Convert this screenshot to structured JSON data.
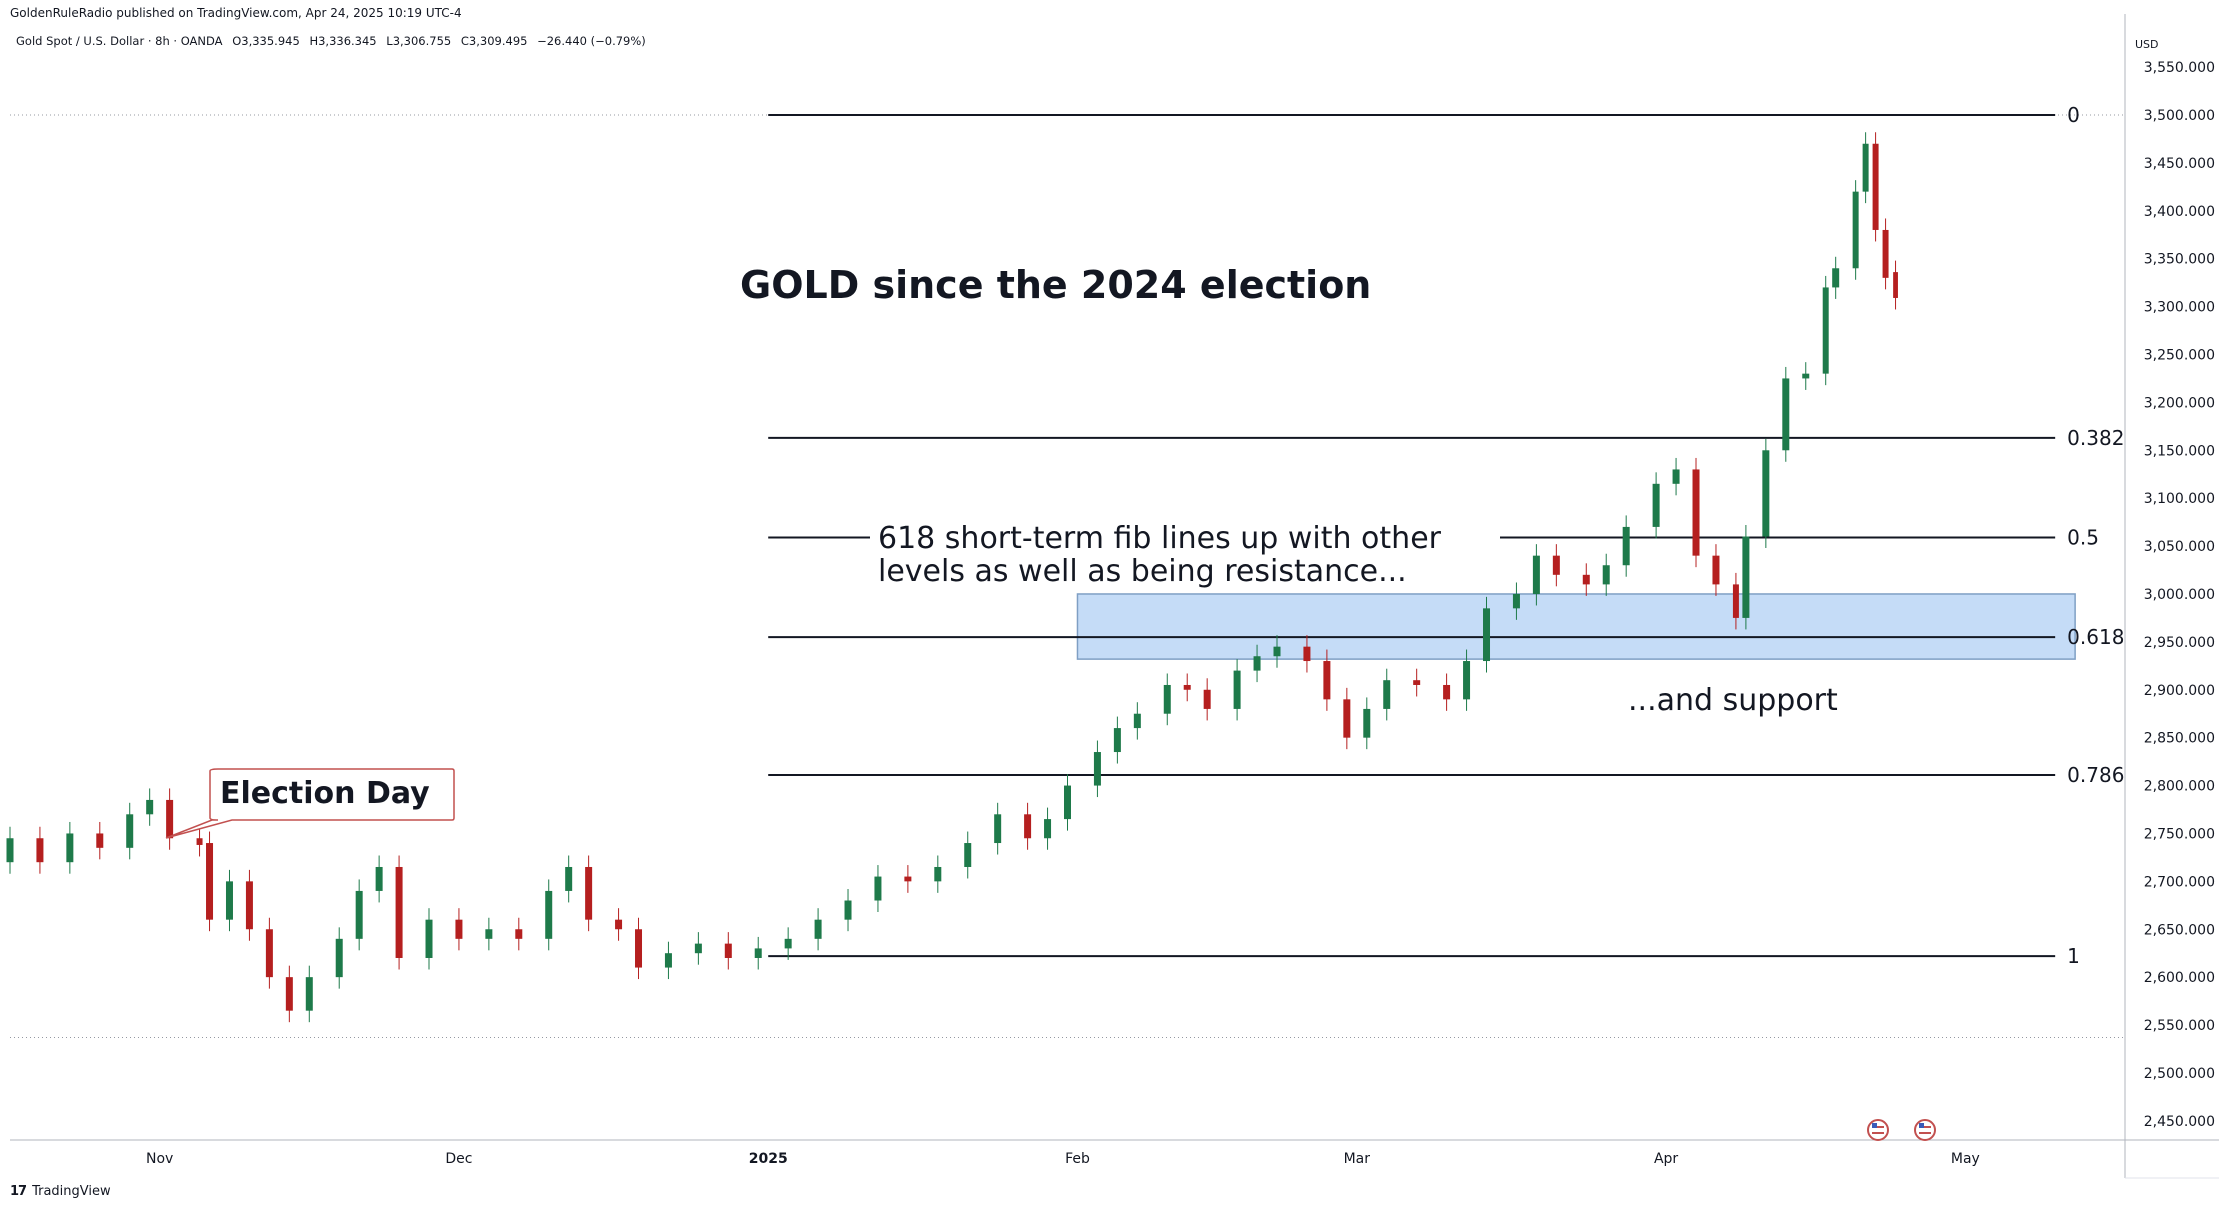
{
  "header": {
    "publisher": "GoldenRuleRadio published on TradingView.com, Apr 24, 2025 10:19 UTC-4",
    "symbol": "Gold Spot / U.S. Dollar · 8h · OANDA",
    "open": "O3,335.945",
    "high": "H3,336.345",
    "low": "L3,306.755",
    "close": "C3,309.495",
    "change": "−26.440 (−0.79%)"
  },
  "footer": {
    "logo_text": "TradingView"
  },
  "colors": {
    "up": "#1e7a4a",
    "down": "#b51f1f",
    "zone": "#c5dcf7",
    "zone_border": "#7f9fc4",
    "grid_text": "#131722"
  },
  "chart_data": {
    "type": "candlestick",
    "currency_label": "USD",
    "ylim": [
      2430,
      3595
    ],
    "y_ticks": [
      "2,450.000",
      "2,500.000",
      "2,550.000",
      "2,600.000",
      "2,650.000",
      "2,700.000",
      "2,750.000",
      "2,800.000",
      "2,850.000",
      "2,900.000",
      "2,950.000",
      "3,000.000",
      "3,050.000",
      "3,100.000",
      "3,150.000",
      "3,200.000",
      "3,250.000",
      "3,300.000",
      "3,350.000",
      "3,400.000",
      "3,450.000",
      "3,500.000",
      "3,550.000"
    ],
    "y_tick_values": [
      2450,
      2500,
      2550,
      2600,
      2650,
      2700,
      2750,
      2800,
      2850,
      2900,
      2950,
      3000,
      3050,
      3100,
      3150,
      3200,
      3250,
      3300,
      3350,
      3400,
      3450,
      3500,
      3550
    ],
    "x_labels": [
      {
        "label": "Nov",
        "date": "2024-11-01",
        "bold": false
      },
      {
        "label": "Dec",
        "date": "2024-12-01",
        "bold": false
      },
      {
        "label": "2025",
        "date": "2025-01-01",
        "bold": true
      },
      {
        "label": "Feb",
        "date": "2025-02-01",
        "bold": false
      },
      {
        "label": "Mar",
        "date": "2025-03-01",
        "bold": false
      },
      {
        "label": "Apr",
        "date": "2025-04-01",
        "bold": false
      },
      {
        "label": "May",
        "date": "2025-05-01",
        "bold": false
      }
    ],
    "x_range": [
      "2024-10-17",
      "2025-05-17"
    ],
    "title": "GOLD since the 2024 election",
    "series": [
      {
        "values": [
          [
            "2024-10-17",
            2720,
            2745
          ],
          [
            "2024-10-20",
            2745,
            2720
          ],
          [
            "2024-10-23",
            2720,
            2750
          ],
          [
            "2024-10-26",
            2750,
            2735
          ],
          [
            "2024-10-29",
            2735,
            2770
          ],
          [
            "2024-10-31",
            2770,
            2785
          ],
          [
            "2024-11-02",
            2785,
            2745
          ],
          [
            "2024-11-05",
            2745,
            2738
          ],
          [
            "2024-11-06",
            2740,
            2660
          ],
          [
            "2024-11-08",
            2660,
            2700
          ],
          [
            "2024-11-10",
            2700,
            2650
          ],
          [
            "2024-11-12",
            2650,
            2600
          ],
          [
            "2024-11-14",
            2600,
            2565
          ],
          [
            "2024-11-16",
            2565,
            2600
          ],
          [
            "2024-11-19",
            2600,
            2640
          ],
          [
            "2024-11-21",
            2640,
            2690
          ],
          [
            "2024-11-23",
            2690,
            2715
          ],
          [
            "2024-11-25",
            2715,
            2620
          ],
          [
            "2024-11-28",
            2620,
            2660
          ],
          [
            "2024-12-01",
            2660,
            2640
          ],
          [
            "2024-12-04",
            2640,
            2650
          ],
          [
            "2024-12-07",
            2650,
            2640
          ],
          [
            "2024-12-10",
            2640,
            2690
          ],
          [
            "2024-12-12",
            2690,
            2715
          ],
          [
            "2024-12-14",
            2715,
            2660
          ],
          [
            "2024-12-17",
            2660,
            2650
          ],
          [
            "2024-12-19",
            2650,
            2610
          ],
          [
            "2024-12-22",
            2610,
            2625
          ],
          [
            "2024-12-25",
            2625,
            2635
          ],
          [
            "2024-12-28",
            2635,
            2620
          ],
          [
            "2024-12-31",
            2620,
            2630
          ],
          [
            "2025-01-03",
            2630,
            2640
          ],
          [
            "2025-01-06",
            2640,
            2660
          ],
          [
            "2025-01-09",
            2660,
            2680
          ],
          [
            "2025-01-12",
            2680,
            2705
          ],
          [
            "2025-01-15",
            2705,
            2700
          ],
          [
            "2025-01-18",
            2700,
            2715
          ],
          [
            "2025-01-21",
            2715,
            2740
          ],
          [
            "2025-01-24",
            2740,
            2770
          ],
          [
            "2025-01-27",
            2770,
            2745
          ],
          [
            "2025-01-29",
            2745,
            2765
          ],
          [
            "2025-01-31",
            2765,
            2800
          ],
          [
            "2025-02-03",
            2800,
            2835
          ],
          [
            "2025-02-05",
            2835,
            2860
          ],
          [
            "2025-02-07",
            2860,
            2875
          ],
          [
            "2025-02-10",
            2875,
            2905
          ],
          [
            "2025-02-12",
            2905,
            2900
          ],
          [
            "2025-02-14",
            2900,
            2880
          ],
          [
            "2025-02-17",
            2880,
            2920
          ],
          [
            "2025-02-19",
            2920,
            2935
          ],
          [
            "2025-02-21",
            2935,
            2945
          ],
          [
            "2025-02-24",
            2945,
            2930
          ],
          [
            "2025-02-26",
            2930,
            2890
          ],
          [
            "2025-02-28",
            2890,
            2850
          ],
          [
            "2025-03-02",
            2850,
            2880
          ],
          [
            "2025-03-04",
            2880,
            2910
          ],
          [
            "2025-03-07",
            2910,
            2905
          ],
          [
            "2025-03-10",
            2905,
            2890
          ],
          [
            "2025-03-12",
            2890,
            2930
          ],
          [
            "2025-03-14",
            2930,
            2985
          ],
          [
            "2025-03-17",
            2985,
            3000
          ],
          [
            "2025-03-19",
            3000,
            3040
          ],
          [
            "2025-03-21",
            3040,
            3020
          ],
          [
            "2025-03-24",
            3020,
            3010
          ],
          [
            "2025-03-26",
            3010,
            3030
          ],
          [
            "2025-03-28",
            3030,
            3070
          ],
          [
            "2025-03-31",
            3070,
            3115
          ],
          [
            "2025-04-02",
            3115,
            3130
          ],
          [
            "2025-04-04",
            3130,
            3040
          ],
          [
            "2025-04-06",
            3040,
            3010
          ],
          [
            "2025-04-08",
            3010,
            2975
          ],
          [
            "2025-04-09",
            2975,
            3060
          ],
          [
            "2025-04-11",
            3060,
            3150
          ],
          [
            "2025-04-13",
            3150,
            3225
          ],
          [
            "2025-04-15",
            3225,
            3230
          ],
          [
            "2025-04-17",
            3230,
            3320
          ],
          [
            "2025-04-18",
            3320,
            3340
          ],
          [
            "2025-04-20",
            3340,
            3420
          ],
          [
            "2025-04-21",
            3420,
            3470
          ],
          [
            "2025-04-22",
            3470,
            3380
          ],
          [
            "2025-04-23",
            3380,
            3330
          ],
          [
            "2025-04-24",
            3336,
            3309
          ]
        ]
      }
    ],
    "ohlc_note": "each entry: date, open, close",
    "lows_highs": {
      "min_low": 2537,
      "max_high": 3500
    },
    "fib_levels": [
      {
        "label": "0",
        "value": 3500
      },
      {
        "label": "0.382",
        "value": 3163
      },
      {
        "label": "0.5",
        "value": 3059
      },
      {
        "label": "0.618",
        "value": 2955
      },
      {
        "label": "0.786",
        "value": 2811
      },
      {
        "label": "1",
        "value": 2622
      }
    ],
    "support_zone": {
      "low": 2932,
      "high": 3000,
      "from": "2025-02-01",
      "to": "2025-05-12"
    },
    "dotted_levels": [
      3500,
      2537
    ],
    "annotations": {
      "election_callout": "Election Day",
      "fib_note_line1": "618 short-term fib lines up with other",
      "fib_note_line2": "levels as well as being resistance...",
      "support_note": "...and support"
    }
  }
}
